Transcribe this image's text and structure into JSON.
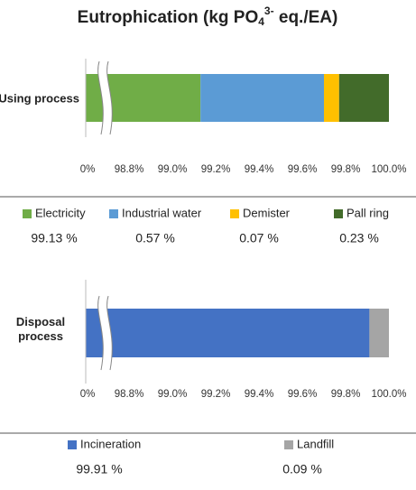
{
  "title_parts": [
    "Eutrophication (kg PO",
    "4",
    "3-",
    " eq./EA)"
  ],
  "chart_data": [
    {
      "type": "stacked-bar-h",
      "categories": [
        "Using process"
      ],
      "series": [
        {
          "name": "Electricity",
          "color": "#70ad47",
          "values": [
            99.13
          ],
          "value_labels": [
            "99.13 %"
          ]
        },
        {
          "name": "Industrial water",
          "color": "#5b9bd5",
          "values": [
            0.57
          ],
          "value_labels": [
            "0.57 %"
          ]
        },
        {
          "name": "Demister",
          "color": "#ffc000",
          "values": [
            0.07
          ],
          "value_labels": [
            "0.07 %"
          ]
        },
        {
          "name": "Pall ring",
          "color": "#426b2a",
          "values": [
            0.23
          ],
          "value_labels": [
            "0.23 %"
          ]
        }
      ],
      "xlim": [
        0,
        100
      ],
      "xbreak": 98.7,
      "xticks": [
        {
          "value": 0,
          "label": "0%"
        },
        {
          "value": 98.8,
          "label": "98.8%"
        },
        {
          "value": 99.0,
          "label": "99.0%"
        },
        {
          "value": 99.2,
          "label": "99.2%"
        },
        {
          "value": 99.4,
          "label": "99.4%"
        },
        {
          "value": 99.6,
          "label": "99.6%"
        },
        {
          "value": 99.8,
          "label": "99.8%"
        },
        {
          "value": 100,
          "label": "100.0%"
        }
      ]
    },
    {
      "type": "stacked-bar-h",
      "categories": [
        "Disposal process"
      ],
      "series": [
        {
          "name": "Incineration",
          "color": "#4472c4",
          "values": [
            99.91
          ],
          "value_labels": [
            "99.91 %"
          ]
        },
        {
          "name": "Landfill",
          "color": "#a5a5a5",
          "values": [
            0.09
          ],
          "value_labels": [
            "0.09 %"
          ]
        }
      ],
      "xlim": [
        0,
        100
      ],
      "xbreak": 98.7,
      "xticks": [
        {
          "value": 0,
          "label": "0%"
        },
        {
          "value": 98.8,
          "label": "98.8%"
        },
        {
          "value": 99.0,
          "label": "99.0%"
        },
        {
          "value": 99.2,
          "label": "99.2%"
        },
        {
          "value": 99.4,
          "label": "99.4%"
        },
        {
          "value": 99.6,
          "label": "99.6%"
        },
        {
          "value": 99.8,
          "label": "99.8%"
        },
        {
          "value": 100,
          "label": "100.0%"
        }
      ]
    }
  ]
}
